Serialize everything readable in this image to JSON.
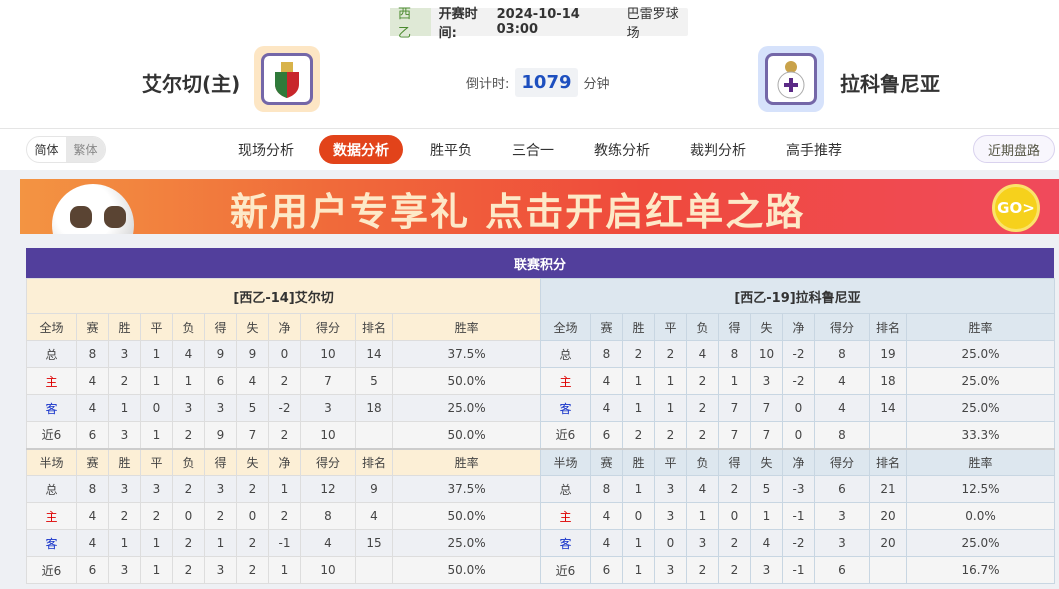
{
  "match": {
    "league": "西乙",
    "time_label": "开赛时间:",
    "time": "2024-10-14 03:00",
    "venue": "巴雷罗球场",
    "home": "艾尔切(主)",
    "away": "拉科鲁尼亚",
    "countdown_label": "倒计时:",
    "countdown": "1079",
    "countdown_unit": "分钟"
  },
  "nav": {
    "lang": [
      "简体",
      "繁体"
    ],
    "tabs": [
      "现场分析",
      "数据分析",
      "胜平负",
      "三合一",
      "教练分析",
      "裁判分析",
      "高手推荐"
    ],
    "active": "数据分析",
    "recent": "近期盘路"
  },
  "banner": {
    "text": "新用户专享礼 点击开启红单之路",
    "go": "GO>"
  },
  "colors": {
    "accent": "#e2431a",
    "title_bar": "#523f9c",
    "home_label": "#dd0000",
    "away_label": "#1330c9"
  },
  "standings": {
    "title": "联赛积分",
    "columns_full": [
      "全场",
      "赛",
      "胜",
      "平",
      "负",
      "得",
      "失",
      "净",
      "得分",
      "排名",
      "胜率"
    ],
    "columns_half": [
      "半场",
      "赛",
      "胜",
      "平",
      "负",
      "得",
      "失",
      "净",
      "得分",
      "排名",
      "胜率"
    ],
    "teams": [
      {
        "title": "[西乙-14]艾尔切",
        "full": [
          [
            "总",
            "8",
            "3",
            "1",
            "4",
            "9",
            "9",
            "0",
            "10",
            "14",
            "37.5%"
          ],
          [
            "主",
            "4",
            "2",
            "1",
            "1",
            "6",
            "4",
            "2",
            "7",
            "5",
            "50.0%"
          ],
          [
            "客",
            "4",
            "1",
            "0",
            "3",
            "3",
            "5",
            "-2",
            "3",
            "18",
            "25.0%"
          ],
          [
            "近6",
            "6",
            "3",
            "1",
            "2",
            "9",
            "7",
            "2",
            "10",
            "",
            "50.0%"
          ]
        ],
        "half": [
          [
            "总",
            "8",
            "3",
            "3",
            "2",
            "3",
            "2",
            "1",
            "12",
            "9",
            "37.5%"
          ],
          [
            "主",
            "4",
            "2",
            "2",
            "0",
            "2",
            "0",
            "2",
            "8",
            "4",
            "50.0%"
          ],
          [
            "客",
            "4",
            "1",
            "1",
            "2",
            "1",
            "2",
            "-1",
            "4",
            "15",
            "25.0%"
          ],
          [
            "近6",
            "6",
            "3",
            "1",
            "2",
            "3",
            "2",
            "1",
            "10",
            "",
            "50.0%"
          ]
        ]
      },
      {
        "title": "[西乙-19]拉科鲁尼亚",
        "full": [
          [
            "总",
            "8",
            "2",
            "2",
            "4",
            "8",
            "10",
            "-2",
            "8",
            "19",
            "25.0%"
          ],
          [
            "主",
            "4",
            "1",
            "1",
            "2",
            "1",
            "3",
            "-2",
            "4",
            "18",
            "25.0%"
          ],
          [
            "客",
            "4",
            "1",
            "1",
            "2",
            "7",
            "7",
            "0",
            "4",
            "14",
            "25.0%"
          ],
          [
            "近6",
            "6",
            "2",
            "2",
            "2",
            "7",
            "7",
            "0",
            "8",
            "",
            "33.3%"
          ]
        ],
        "half": [
          [
            "总",
            "8",
            "1",
            "3",
            "4",
            "2",
            "5",
            "-3",
            "6",
            "21",
            "12.5%"
          ],
          [
            "主",
            "4",
            "0",
            "3",
            "1",
            "0",
            "1",
            "-1",
            "3",
            "20",
            "0.0%"
          ],
          [
            "客",
            "4",
            "1",
            "0",
            "3",
            "2",
            "4",
            "-2",
            "3",
            "20",
            "25.0%"
          ],
          [
            "近6",
            "6",
            "1",
            "3",
            "2",
            "2",
            "3",
            "-1",
            "6",
            "",
            "16.7%"
          ]
        ]
      }
    ]
  }
}
